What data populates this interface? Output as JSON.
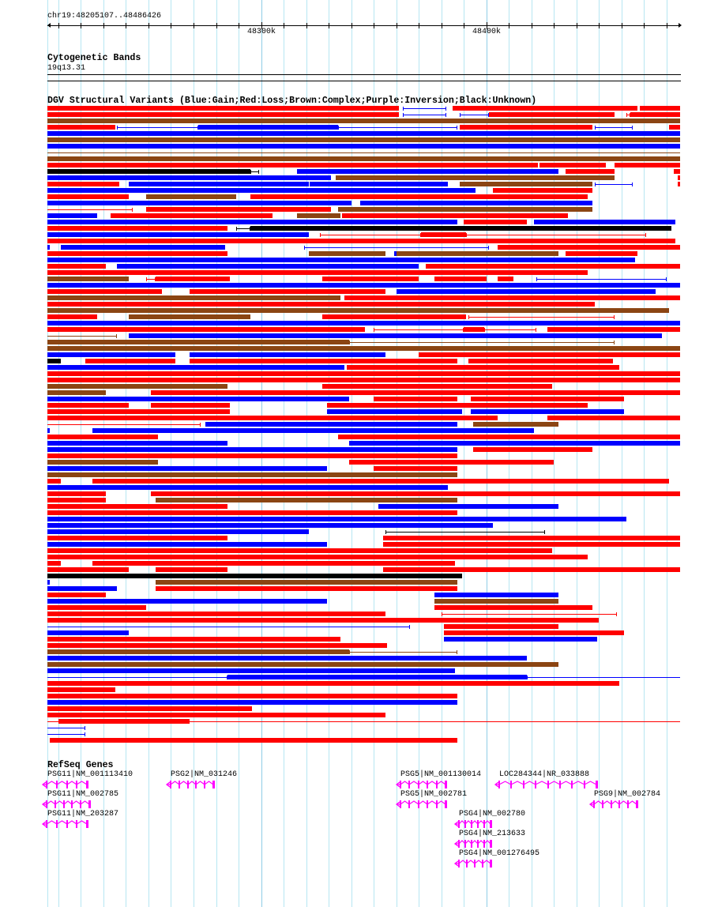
{
  "ruler": {
    "region_label": "chr19:48205107..48486426",
    "start_bp": 48205107,
    "end_bp": 48486426,
    "tick_kb_step": 10,
    "major_labels": [
      {
        "kb": 48300,
        "label": "48300k"
      },
      {
        "kb": 48400,
        "label": "48400k"
      }
    ]
  },
  "cytoband_track": {
    "title": "Cytogenetic Bands",
    "band": "19q13.31"
  },
  "dgv_track": {
    "title": "DGV Structural Variants (Blue:Gain;Red:Loss;Brown:Complex;Purple:Inversion;Black:Unknown)",
    "type_codes": {
      "G": "Gain",
      "L": "Loss",
      "C": "Complex",
      "P": "Inversion",
      "U": "Unknown"
    },
    "colors": {
      "G": "#0000ff",
      "L": "#ff0000",
      "C": "#8b4513",
      "P": "#a020f0",
      "U": "#000000"
    },
    "note": "segments are [type(+'-' for thin span), start_kb_offset, end_kb_offset] relative to region start",
    "rows": [
      [
        [
          "L",
          0,
          156
        ],
        [
          "G-",
          158,
          177
        ],
        [
          "L",
          180,
          262
        ],
        [
          "L",
          263,
          281
        ]
      ],
      [
        [
          "L",
          0,
          156
        ],
        [
          "G-",
          158,
          177
        ],
        [
          "G-",
          183,
          196
        ],
        [
          "L",
          196,
          252
        ],
        [
          "L-",
          257,
          259
        ],
        [
          "L",
          259,
          281
        ]
      ],
      [
        [
          "C",
          0,
          281
        ]
      ],
      [
        [
          "L",
          0,
          30
        ],
        [
          "G-",
          31,
          67
        ],
        [
          "G",
          67,
          129
        ],
        [
          "G-",
          129,
          182
        ],
        [
          "L",
          183,
          242
        ],
        [
          "G-",
          243,
          260
        ],
        [
          "L",
          276,
          281
        ]
      ],
      [
        [
          "G",
          0,
          281
        ]
      ],
      [
        [
          "C",
          0,
          281
        ]
      ],
      [
        [
          "G",
          0,
          281
        ]
      ],
      [
        [
          "C-",
          0,
          281
        ]
      ],
      [
        [
          "C",
          0,
          281
        ]
      ],
      [
        [
          "L",
          0,
          218
        ],
        [
          "L",
          218.5,
          248
        ],
        [
          "L",
          252,
          281
        ]
      ],
      [
        [
          "U",
          0,
          90
        ],
        [
          "U-",
          90,
          94
        ],
        [
          "G",
          111,
          227
        ],
        [
          "L",
          230,
          252
        ],
        [
          "L",
          278,
          281
        ]
      ],
      [
        [
          "G",
          0,
          126
        ],
        [
          "C",
          128,
          252
        ],
        [
          "L",
          280,
          281
        ]
      ],
      [
        [
          "L",
          0,
          32
        ],
        [
          "G",
          36,
          116
        ],
        [
          "G",
          116.5,
          178
        ],
        [
          "C",
          183,
          242
        ],
        [
          "G-",
          243,
          260
        ],
        [
          "L",
          280,
          281
        ]
      ],
      [
        [
          "G",
          0,
          190
        ],
        [
          "L",
          198,
          242
        ]
      ],
      [
        [
          "L",
          0,
          36
        ],
        [
          "C",
          44,
          84
        ],
        [
          "L",
          90,
          240
        ]
      ],
      [
        [
          "G",
          0,
          135
        ],
        [
          "G",
          139,
          242
        ]
      ],
      [
        [
          "L-",
          0,
          38
        ],
        [
          "L",
          44,
          126
        ],
        [
          "C",
          129,
          242
        ]
      ],
      [
        [
          "G",
          0,
          22
        ],
        [
          "L",
          28,
          100
        ],
        [
          "C",
          111,
          130
        ],
        [
          "L",
          131,
          231
        ]
      ],
      [
        [
          "G",
          0,
          182
        ],
        [
          "L",
          185,
          213
        ],
        [
          "G",
          216,
          279
        ]
      ],
      [
        [
          "L",
          0,
          80
        ],
        [
          "U-",
          84,
          90
        ],
        [
          "U",
          90,
          277
        ]
      ],
      [
        [
          "G",
          0,
          116
        ],
        [
          "L-",
          121,
          166
        ],
        [
          "L",
          166,
          186
        ],
        [
          "L-",
          186,
          266
        ]
      ],
      [
        [
          "L",
          0,
          279
        ]
      ],
      [
        [
          "G",
          0,
          1
        ],
        [
          "G",
          6,
          79
        ],
        [
          "G-",
          114,
          196
        ],
        [
          "L",
          200,
          281
        ]
      ],
      [
        [
          "L",
          0,
          80
        ],
        [
          "C",
          116,
          150
        ],
        [
          "G",
          154,
          155
        ],
        [
          "C",
          155,
          227
        ],
        [
          "L",
          230,
          262
        ]
      ],
      [
        [
          "G",
          0,
          261
        ]
      ],
      [
        [
          "L",
          0,
          26
        ],
        [
          "G",
          31,
          165
        ],
        [
          "L",
          168,
          281
        ]
      ],
      [
        [
          "L",
          0,
          240
        ]
      ],
      [
        [
          "C",
          0,
          36
        ],
        [
          "L-",
          44,
          48
        ],
        [
          "L",
          48,
          81
        ],
        [
          "L",
          122,
          165
        ],
        [
          "L",
          172,
          195
        ],
        [
          "L",
          200,
          207
        ],
        [
          "G-",
          217,
          275
        ]
      ],
      [
        [
          "G",
          0,
          281
        ]
      ],
      [
        [
          "L",
          0,
          51
        ],
        [
          "L",
          63,
          150
        ],
        [
          "G",
          155,
          270
        ]
      ],
      [
        [
          "C",
          0,
          130
        ],
        [
          "L",
          132,
          281
        ]
      ],
      [
        [
          "L",
          0,
          243
        ]
      ],
      [
        [
          "C",
          0,
          276
        ]
      ],
      [
        [
          "L",
          0,
          22
        ],
        [
          "C",
          36,
          90
        ],
        [
          "L",
          122,
          186
        ],
        [
          "L-",
          187,
          252
        ]
      ],
      [
        [
          "G",
          0,
          281
        ]
      ],
      [
        [
          "L",
          0,
          141
        ],
        [
          "L-",
          145,
          185
        ],
        [
          "L",
          185,
          194
        ],
        [
          "L-",
          194,
          217
        ],
        [
          "L",
          222,
          281
        ]
      ],
      [
        [
          "C-",
          0,
          31
        ],
        [
          "G",
          36,
          273
        ]
      ],
      [
        [
          "C",
          0,
          134
        ],
        [
          "C-",
          134,
          252
        ]
      ],
      [
        [
          "C",
          0,
          281
        ]
      ],
      [
        [
          "G",
          0,
          57
        ],
        [
          "G",
          63,
          150
        ],
        [
          "L",
          165,
          281
        ]
      ],
      [
        [
          "U",
          0,
          6
        ],
        [
          "L",
          17,
          57
        ],
        [
          "L",
          63,
          182
        ],
        [
          "L",
          187,
          251
        ]
      ],
      [
        [
          "G",
          0,
          132
        ],
        [
          "L",
          133,
          254
        ]
      ],
      [
        [
          "L",
          0,
          281
        ]
      ],
      [
        [
          "L",
          0,
          281
        ]
      ],
      [
        [
          "C",
          0,
          80
        ],
        [
          "L",
          122,
          224
        ]
      ],
      [
        [
          "C",
          0,
          26
        ],
        [
          "L",
          46,
          281
        ]
      ],
      [
        [
          "G",
          0,
          134
        ],
        [
          "L",
          145,
          182
        ],
        [
          "L",
          188,
          256
        ]
      ],
      [
        [
          "L",
          0,
          36
        ],
        [
          "L",
          46,
          81
        ],
        [
          "L",
          124,
          240
        ]
      ],
      [
        [
          "L",
          0,
          81
        ],
        [
          "G",
          124,
          184
        ],
        [
          "G",
          188,
          256
        ]
      ],
      [
        [
          "L",
          0,
          200
        ],
        [
          "L",
          222,
          281
        ]
      ],
      [
        [
          "L-",
          0,
          68
        ],
        [
          "G",
          70,
          182
        ],
        [
          "C",
          189,
          227
        ]
      ],
      [
        [
          "G",
          0,
          1
        ],
        [
          "G",
          20,
          216
        ]
      ],
      [
        [
          "L",
          0,
          49
        ],
        [
          "L",
          129,
          281
        ]
      ],
      [
        [
          "G",
          0,
          80
        ],
        [
          "G",
          134,
          281
        ]
      ],
      [
        [
          "G",
          0,
          182
        ],
        [
          "L",
          189,
          242
        ]
      ],
      [
        [
          "L",
          0,
          182
        ]
      ],
      [
        [
          "C",
          0,
          49
        ],
        [
          "L",
          134,
          225
        ]
      ],
      [
        [
          "G",
          0,
          124
        ],
        [
          "L",
          145,
          182
        ]
      ],
      [
        [
          "C",
          0,
          182
        ]
      ],
      [
        [
          "L",
          0,
          6
        ],
        [
          "L",
          20,
          276
        ]
      ],
      [
        [
          "G",
          0,
          178
        ]
      ],
      [
        [
          "L",
          0,
          26
        ],
        [
          "L",
          46,
          281
        ]
      ],
      [
        [
          "L",
          0,
          26
        ],
        [
          "C",
          48,
          182
        ]
      ],
      [
        [
          "L",
          0,
          80
        ],
        [
          "G",
          147,
          227
        ]
      ],
      [
        [
          "L",
          0,
          182
        ]
      ],
      [
        [
          "G",
          0,
          257
        ]
      ],
      [
        [
          "G",
          0,
          198
        ]
      ],
      [
        [
          "G",
          0,
          116
        ],
        [
          "U-",
          150,
          221
        ]
      ],
      [
        [
          "L",
          0,
          80
        ],
        [
          "L",
          149,
          281
        ]
      ],
      [
        [
          "G",
          0,
          124
        ],
        [
          "L",
          149,
          281
        ]
      ],
      [
        [
          "L",
          0,
          224
        ]
      ],
      [
        [
          "L",
          0,
          240
        ]
      ],
      [
        [
          "L",
          0,
          6
        ],
        [
          "L",
          20,
          181
        ]
      ],
      [
        [
          "L",
          0,
          36
        ],
        [
          "L",
          48,
          80
        ],
        [
          "L",
          149,
          281
        ]
      ],
      [
        [
          "U",
          0,
          184
        ]
      ],
      [
        [
          "G",
          0,
          1
        ],
        [
          "C",
          48,
          182
        ]
      ],
      [
        [
          "G",
          0,
          31
        ],
        [
          "L",
          48,
          182
        ]
      ],
      [
        [
          "L",
          0,
          26
        ],
        [
          "G",
          172,
          227
        ]
      ],
      [
        [
          "G",
          0,
          124
        ],
        [
          "C",
          172,
          227
        ]
      ],
      [
        [
          "L",
          0,
          44
        ],
        [
          "L",
          172,
          242
        ]
      ],
      [
        [
          "L",
          0,
          150
        ],
        [
          "L-",
          175,
          253
        ]
      ],
      [
        [
          "L",
          0,
          245
        ]
      ],
      [
        [
          "G-",
          0,
          161
        ],
        [
          "L",
          176,
          227
        ]
      ],
      [
        [
          "G",
          0,
          36
        ],
        [
          "L",
          176,
          256
        ]
      ],
      [
        [
          "L",
          0,
          130
        ],
        [
          "G",
          176,
          244
        ]
      ],
      [
        [
          "L",
          0,
          151
        ]
      ],
      [
        [
          "C",
          0,
          134
        ],
        [
          "C-",
          134,
          182
        ]
      ],
      [
        [
          "G",
          0,
          213
        ]
      ],
      [
        [
          "C",
          0,
          227
        ]
      ],
      [
        [
          "G",
          0,
          181
        ]
      ],
      [
        [
          "G-",
          0,
          80
        ],
        [
          "G",
          80,
          213
        ],
        [
          "G-",
          213,
          281
        ]
      ],
      [
        [
          "L",
          0,
          254
        ]
      ],
      [
        [
          "L",
          0,
          30
        ]
      ],
      [
        [
          "L",
          0,
          182
        ]
      ],
      [
        [
          "G",
          0,
          182
        ]
      ],
      [
        [
          "L",
          0,
          91
        ]
      ],
      [
        [
          "L",
          0,
          150
        ]
      ],
      [
        [
          "L-",
          0,
          281
        ],
        [
          "L",
          5,
          63
        ]
      ],
      [
        [
          "G-",
          0,
          17
        ]
      ],
      [
        [
          "G-",
          0,
          17
        ]
      ],
      [
        [
          "L",
          1,
          182
        ]
      ]
    ]
  },
  "refseq_track": {
    "title": "RefSeq Genes",
    "color": "#ff00ff",
    "genes": [
      {
        "label": "PSG11|NM_001113410",
        "row": 0,
        "start_kb": -2,
        "end_kb": 18,
        "exons": 5
      },
      {
        "label": "PSG2|NM_031246",
        "row": 0,
        "start_kb": 53,
        "end_kb": 74,
        "exons": 6
      },
      {
        "label": "PSG5|NM_001130014",
        "row": 0,
        "start_kb": 155,
        "end_kb": 177,
        "exons": 6
      },
      {
        "label": "LOC284344|NR_033888",
        "row": 0,
        "start_kb": 199,
        "end_kb": 244,
        "exons": 9
      },
      {
        "label": "PSG11|NM_002785",
        "row": 1,
        "start_kb": -2,
        "end_kb": 19,
        "exons": 6
      },
      {
        "label": "PSG5|NM_002781",
        "row": 1,
        "start_kb": 155,
        "end_kb": 177,
        "exons": 6
      },
      {
        "label": "PSG9|NM_002784",
        "row": 1,
        "start_kb": 241,
        "end_kb": 262,
        "exons": 6
      },
      {
        "label": "PSG11|NM_203287",
        "row": 2,
        "start_kb": -2,
        "end_kb": 18,
        "exons": 5
      },
      {
        "label": "PSG4|NM_002780",
        "row": 2,
        "start_kb": 181,
        "end_kb": 197,
        "exons": 6
      },
      {
        "label": "PSG4|NM_213633",
        "row": 3,
        "start_kb": 181,
        "end_kb": 197,
        "exons": 6
      },
      {
        "label": "PSG4|NM_001276495",
        "row": 4,
        "start_kb": 181,
        "end_kb": 197,
        "exons": 5
      }
    ]
  }
}
